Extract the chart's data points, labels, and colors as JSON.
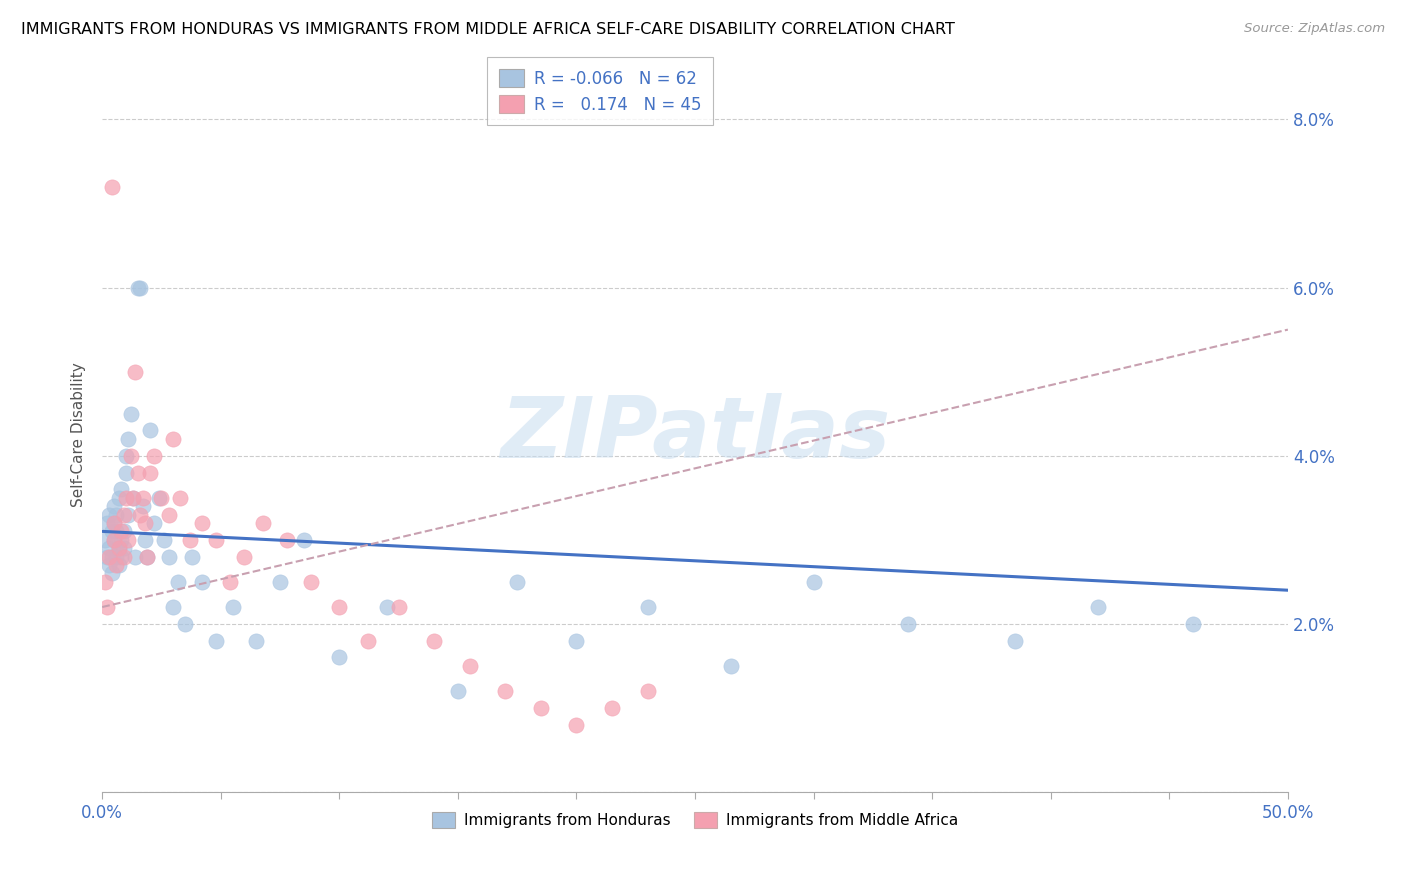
{
  "title": "IMMIGRANTS FROM HONDURAS VS IMMIGRANTS FROM MIDDLE AFRICA SELF-CARE DISABILITY CORRELATION CHART",
  "source": "Source: ZipAtlas.com",
  "ylabel": "Self-Care Disability",
  "xlim": [
    0.0,
    0.5
  ],
  "ylim": [
    0.0,
    0.085
  ],
  "xticks": [
    0.0,
    0.05,
    0.1,
    0.15,
    0.2,
    0.25,
    0.3,
    0.35,
    0.4,
    0.45,
    0.5
  ],
  "yticks": [
    0.0,
    0.02,
    0.04,
    0.06,
    0.08
  ],
  "legend_r_blue": "-0.066",
  "legend_n_blue": "62",
  "legend_r_pink": "0.174",
  "legend_n_pink": "45",
  "blue_color": "#a8c4e0",
  "pink_color": "#f4a0b0",
  "blue_line_color": "#4472c4",
  "pink_line_color": "#e06878",
  "trend_line_color": "#c8a0b0",
  "watermark": "ZIPatlas",
  "honduras_x": [
    0.001,
    0.002,
    0.002,
    0.003,
    0.003,
    0.003,
    0.004,
    0.004,
    0.004,
    0.005,
    0.005,
    0.005,
    0.006,
    0.006,
    0.006,
    0.007,
    0.007,
    0.007,
    0.008,
    0.008,
    0.008,
    0.009,
    0.009,
    0.01,
    0.01,
    0.011,
    0.011,
    0.012,
    0.013,
    0.014,
    0.015,
    0.016,
    0.017,
    0.018,
    0.019,
    0.02,
    0.022,
    0.024,
    0.026,
    0.028,
    0.03,
    0.032,
    0.035,
    0.038,
    0.042,
    0.048,
    0.055,
    0.065,
    0.075,
    0.085,
    0.1,
    0.12,
    0.15,
    0.175,
    0.2,
    0.23,
    0.265,
    0.3,
    0.34,
    0.385,
    0.42,
    0.46
  ],
  "honduras_y": [
    0.03,
    0.028,
    0.032,
    0.029,
    0.033,
    0.027,
    0.031,
    0.028,
    0.026,
    0.03,
    0.032,
    0.034,
    0.028,
    0.031,
    0.033,
    0.029,
    0.027,
    0.035,
    0.03,
    0.028,
    0.036,
    0.029,
    0.031,
    0.04,
    0.038,
    0.042,
    0.033,
    0.045,
    0.035,
    0.028,
    0.06,
    0.06,
    0.034,
    0.03,
    0.028,
    0.043,
    0.032,
    0.035,
    0.03,
    0.028,
    0.022,
    0.025,
    0.02,
    0.028,
    0.025,
    0.018,
    0.022,
    0.018,
    0.025,
    0.03,
    0.016,
    0.022,
    0.012,
    0.025,
    0.018,
    0.022,
    0.015,
    0.025,
    0.02,
    0.018,
    0.022,
    0.02
  ],
  "middle_africa_x": [
    0.001,
    0.002,
    0.003,
    0.004,
    0.005,
    0.005,
    0.006,
    0.007,
    0.008,
    0.009,
    0.009,
    0.01,
    0.011,
    0.012,
    0.013,
    0.014,
    0.015,
    0.016,
    0.017,
    0.018,
    0.019,
    0.02,
    0.022,
    0.025,
    0.028,
    0.03,
    0.033,
    0.037,
    0.042,
    0.048,
    0.054,
    0.06,
    0.068,
    0.078,
    0.088,
    0.1,
    0.112,
    0.125,
    0.14,
    0.155,
    0.17,
    0.185,
    0.2,
    0.215,
    0.23
  ],
  "middle_africa_y": [
    0.025,
    0.022,
    0.028,
    0.072,
    0.03,
    0.032,
    0.027,
    0.029,
    0.031,
    0.028,
    0.033,
    0.035,
    0.03,
    0.04,
    0.035,
    0.05,
    0.038,
    0.033,
    0.035,
    0.032,
    0.028,
    0.038,
    0.04,
    0.035,
    0.033,
    0.042,
    0.035,
    0.03,
    0.032,
    0.03,
    0.025,
    0.028,
    0.032,
    0.03,
    0.025,
    0.022,
    0.018,
    0.022,
    0.018,
    0.015,
    0.012,
    0.01,
    0.008,
    0.01,
    0.012
  ]
}
